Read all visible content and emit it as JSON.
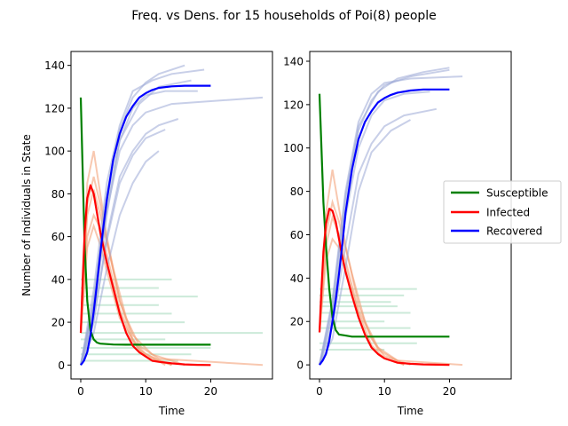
{
  "chart_data": {
    "type": "line",
    "suptitle": "Freq. vs Dens. for 15 households of Poi(8) people",
    "colors": {
      "Susceptible": "#008000",
      "Infected": "#ff0000",
      "Recovered": "#0000ff",
      "sample_Susceptible": "#a3d9b9",
      "sample_Infected": "#f39a6f",
      "sample_Recovered": "#9aa8d6"
    },
    "legend": {
      "placement": "right",
      "entries": [
        "Susceptible",
        "Infected",
        "Recovered"
      ]
    },
    "panels": [
      {
        "xlabel": "Time",
        "ylabel": "Number of Individuals in State",
        "xlim": [
          -1.5,
          29.5
        ],
        "ylim": [
          -6.5,
          146.5
        ],
        "xticks": [
          0,
          10,
          20
        ],
        "yticks": [
          0,
          20,
          40,
          60,
          80,
          100,
          120,
          140
        ],
        "mean_series": [
          {
            "name": "Susceptible",
            "x": [
              0,
              0.3,
              0.6,
              1,
              1.5,
              2,
              2.5,
              3,
              4,
              5,
              7,
              10,
              15,
              20
            ],
            "y": [
              125,
              90,
              55,
              30,
              16,
              12,
              10.5,
              10,
              9.8,
              9.6,
              9.5,
              9.5,
              9.5,
              9.5
            ]
          },
          {
            "name": "Infected",
            "x": [
              0,
              0.3,
              0.6,
              1,
              1.5,
              2,
              2.5,
              3,
              3.5,
              4,
              5,
              6,
              7,
              8,
              9,
              10,
              11,
              12,
              14,
              16,
              18,
              20
            ],
            "y": [
              15,
              40,
              62,
              78,
              84,
              80,
              71,
              62,
              55,
              48,
              36,
              24,
              15,
              9,
              6,
              4,
              2,
              1.5,
              0.8,
              0.3,
              0.1,
              0
            ]
          },
          {
            "name": "Recovered",
            "x": [
              0,
              0.5,
              1,
              1.5,
              2,
              2.5,
              3,
              3.5,
              4,
              5,
              6,
              7,
              8,
              9,
              10,
              11,
              12,
              14,
              16,
              18,
              20
            ],
            "y": [
              0,
              2,
              6,
              14,
              25,
              38,
              52,
              65,
              77,
              96,
              108,
              116,
              121,
              125,
              127,
              128.5,
              129.5,
              130.2,
              130.5,
              130.5,
              130.5
            ]
          }
        ],
        "sample_runs": {
          "Recovered": [
            {
              "x": [
                0,
                2,
                4,
                6,
                8,
                10,
                12,
                16
              ],
              "y": [
                0,
                30,
                80,
                110,
                125,
                132,
                136,
                140
              ]
            },
            {
              "x": [
                0,
                2,
                4,
                6,
                8,
                10,
                12,
                15
              ],
              "y": [
                0,
                20,
                60,
                88,
                100,
                108,
                112,
                115
              ]
            },
            {
              "x": [
                0,
                2,
                4,
                6,
                8,
                10,
                14,
                28
              ],
              "y": [
                0,
                28,
                72,
                100,
                112,
                118,
                122,
                125
              ]
            },
            {
              "x": [
                0,
                2,
                4,
                6,
                8,
                11,
                14,
                19
              ],
              "y": [
                0,
                35,
                85,
                112,
                128,
                133,
                136,
                138
              ]
            },
            {
              "x": [
                0,
                2,
                4,
                6,
                8,
                10,
                13,
                18
              ],
              "y": [
                0,
                25,
                70,
                105,
                120,
                126,
                128,
                128
              ]
            },
            {
              "x": [
                0,
                2,
                4,
                6,
                8,
                10,
                12
              ],
              "y": [
                0,
                15,
                45,
                70,
                85,
                95,
                100
              ]
            },
            {
              "x": [
                0,
                2,
                4,
                6,
                8,
                10,
                13
              ],
              "y": [
                0,
                22,
                58,
                85,
                98,
                106,
                110
              ]
            },
            {
              "x": [
                0,
                2,
                4,
                6,
                9,
                12,
                17
              ],
              "y": [
                0,
                30,
                75,
                105,
                122,
                130,
                133
              ]
            }
          ],
          "Infected": [
            {
              "x": [
                0,
                1,
                2,
                3,
                4,
                6,
                8,
                10,
                14
              ],
              "y": [
                15,
                85,
                100,
                80,
                60,
                30,
                12,
                5,
                0
              ]
            },
            {
              "x": [
                0,
                1,
                2,
                3,
                4,
                6,
                8,
                10,
                14
              ],
              "y": [
                15,
                60,
                70,
                64,
                52,
                26,
                11,
                4,
                0
              ]
            },
            {
              "x": [
                0,
                1,
                2,
                3,
                4,
                6,
                8,
                11,
                16
              ],
              "y": [
                15,
                75,
                88,
                75,
                58,
                30,
                14,
                5,
                0
              ]
            },
            {
              "x": [
                0,
                1,
                2,
                3,
                5,
                7,
                9,
                12,
                28
              ],
              "y": [
                15,
                70,
                82,
                70,
                45,
                22,
                9,
                3,
                0
              ]
            },
            {
              "x": [
                0,
                1,
                2,
                3,
                4,
                6,
                9,
                13
              ],
              "y": [
                15,
                55,
                65,
                56,
                44,
                22,
                7,
                0
              ]
            }
          ],
          "Susceptible": [
            {
              "x": [
                0,
                14,
                14
              ],
              "y": [
                40,
                40,
                40
              ]
            },
            {
              "x": [
                0,
                12
              ],
              "y": [
                36,
                36
              ]
            },
            {
              "x": [
                0,
                18
              ],
              "y": [
                32,
                32
              ]
            },
            {
              "x": [
                0,
                12
              ],
              "y": [
                28,
                28
              ]
            },
            {
              "x": [
                0,
                14
              ],
              "y": [
                24,
                24
              ]
            },
            {
              "x": [
                0,
                16
              ],
              "y": [
                20,
                20
              ]
            },
            {
              "x": [
                0,
                28
              ],
              "y": [
                15,
                15
              ]
            },
            {
              "x": [
                0,
                13
              ],
              "y": [
                12,
                12
              ]
            },
            {
              "x": [
                0,
                20
              ],
              "y": [
                8,
                8
              ]
            },
            {
              "x": [
                0,
                17
              ],
              "y": [
                5,
                5
              ]
            },
            {
              "x": [
                0,
                15
              ],
              "y": [
                2,
                2
              ]
            }
          ]
        }
      },
      {
        "xlabel": "Time",
        "ylabel": "",
        "xlim": [
          -1.5,
          29.5
        ],
        "ylim": [
          -6.5,
          144.5
        ],
        "xticks": [
          0,
          10,
          20
        ],
        "yticks": [
          0,
          20,
          40,
          60,
          80,
          100,
          120,
          140
        ],
        "mean_series": [
          {
            "name": "Susceptible",
            "x": [
              0,
              0.3,
              0.6,
              1,
              1.5,
              2,
              2.5,
              3,
              4,
              5,
              7,
              10,
              15,
              20
            ],
            "y": [
              125,
              100,
              75,
              55,
              35,
              22,
              16,
              14,
              13.5,
              13,
              13,
              13,
              13,
              13
            ]
          },
          {
            "name": "Infected",
            "x": [
              0,
              0.3,
              0.6,
              1,
              1.5,
              2,
              2.5,
              3,
              3.5,
              4,
              5,
              6,
              7,
              8,
              9,
              10,
              11,
              12,
              14,
              16,
              18,
              20
            ],
            "y": [
              15,
              35,
              52,
              65,
              72,
              71,
              66,
              58,
              50,
              43,
              32,
              22,
              14,
              8,
              5,
              3,
              2,
              1,
              0.5,
              0.2,
              0.1,
              0
            ]
          },
          {
            "name": "Recovered",
            "x": [
              0,
              0.5,
              1,
              1.5,
              2,
              2.5,
              3,
              3.5,
              4,
              5,
              6,
              7,
              8,
              9,
              10,
              11,
              12,
              14,
              16,
              18,
              20
            ],
            "y": [
              0,
              2,
              5,
              11,
              20,
              30,
              42,
              55,
              70,
              90,
              104,
              112,
              117,
              121,
              123,
              124.5,
              125.5,
              126.5,
              127,
              127,
              127
            ]
          }
        ],
        "sample_runs": {
          "Recovered": [
            {
              "x": [
                0,
                2,
                4,
                6,
                8,
                10,
                14,
                20
              ],
              "y": [
                0,
                25,
                75,
                108,
                122,
                129,
                133,
                136
              ]
            },
            {
              "x": [
                0,
                2,
                4,
                6,
                8,
                10,
                13,
                18
              ],
              "y": [
                0,
                18,
                55,
                88,
                102,
                110,
                115,
                118
              ]
            },
            {
              "x": [
                0,
                2,
                4,
                6,
                8,
                10,
                14,
                22
              ],
              "y": [
                0,
                30,
                80,
                112,
                125,
                130,
                132,
                133
              ]
            },
            {
              "x": [
                0,
                2,
                4,
                6,
                8,
                11,
                14
              ],
              "y": [
                0,
                12,
                45,
                80,
                98,
                108,
                113
              ]
            },
            {
              "x": [
                0,
                2,
                4,
                6,
                8,
                10,
                13,
                17
              ],
              "y": [
                0,
                22,
                68,
                100,
                115,
                122,
                125,
                126
              ]
            },
            {
              "x": [
                0,
                2,
                4,
                6,
                9,
                12,
                16,
                20
              ],
              "y": [
                0,
                28,
                78,
                110,
                126,
                132,
                135,
                137
              ]
            }
          ],
          "Infected": [
            {
              "x": [
                0,
                1,
                2,
                3,
                4,
                6,
                8,
                10,
                14
              ],
              "y": [
                15,
                70,
                90,
                72,
                55,
                28,
                12,
                4,
                0
              ]
            },
            {
              "x": [
                0,
                1,
                2,
                3,
                4,
                6,
                8,
                10,
                13
              ],
              "y": [
                15,
                48,
                58,
                54,
                45,
                24,
                9,
                3,
                0
              ]
            },
            {
              "x": [
                0,
                1,
                2,
                3,
                5,
                7,
                9,
                12,
                22
              ],
              "y": [
                15,
                60,
                75,
                66,
                42,
                20,
                8,
                2,
                0
              ]
            },
            {
              "x": [
                0,
                1,
                2,
                3,
                4,
                6,
                9,
                13
              ],
              "y": [
                15,
                55,
                68,
                60,
                48,
                25,
                7,
                0
              ]
            }
          ],
          "Susceptible": [
            {
              "x": [
                0,
                15
              ],
              "y": [
                35,
                35
              ]
            },
            {
              "x": [
                0,
                13
              ],
              "y": [
                32,
                32
              ]
            },
            {
              "x": [
                0,
                11
              ],
              "y": [
                29,
                29
              ]
            },
            {
              "x": [
                0,
                12
              ],
              "y": [
                27,
                27
              ]
            },
            {
              "x": [
                0,
                14
              ],
              "y": [
                24,
                24
              ]
            },
            {
              "x": [
                0,
                10
              ],
              "y": [
                20,
                20
              ]
            },
            {
              "x": [
                0,
                14
              ],
              "y": [
                17,
                17
              ]
            },
            {
              "x": [
                0,
                15
              ],
              "y": [
                10,
                10
              ]
            },
            {
              "x": [
                0,
                10
              ],
              "y": [
                7,
                7
              ]
            }
          ]
        }
      }
    ]
  }
}
